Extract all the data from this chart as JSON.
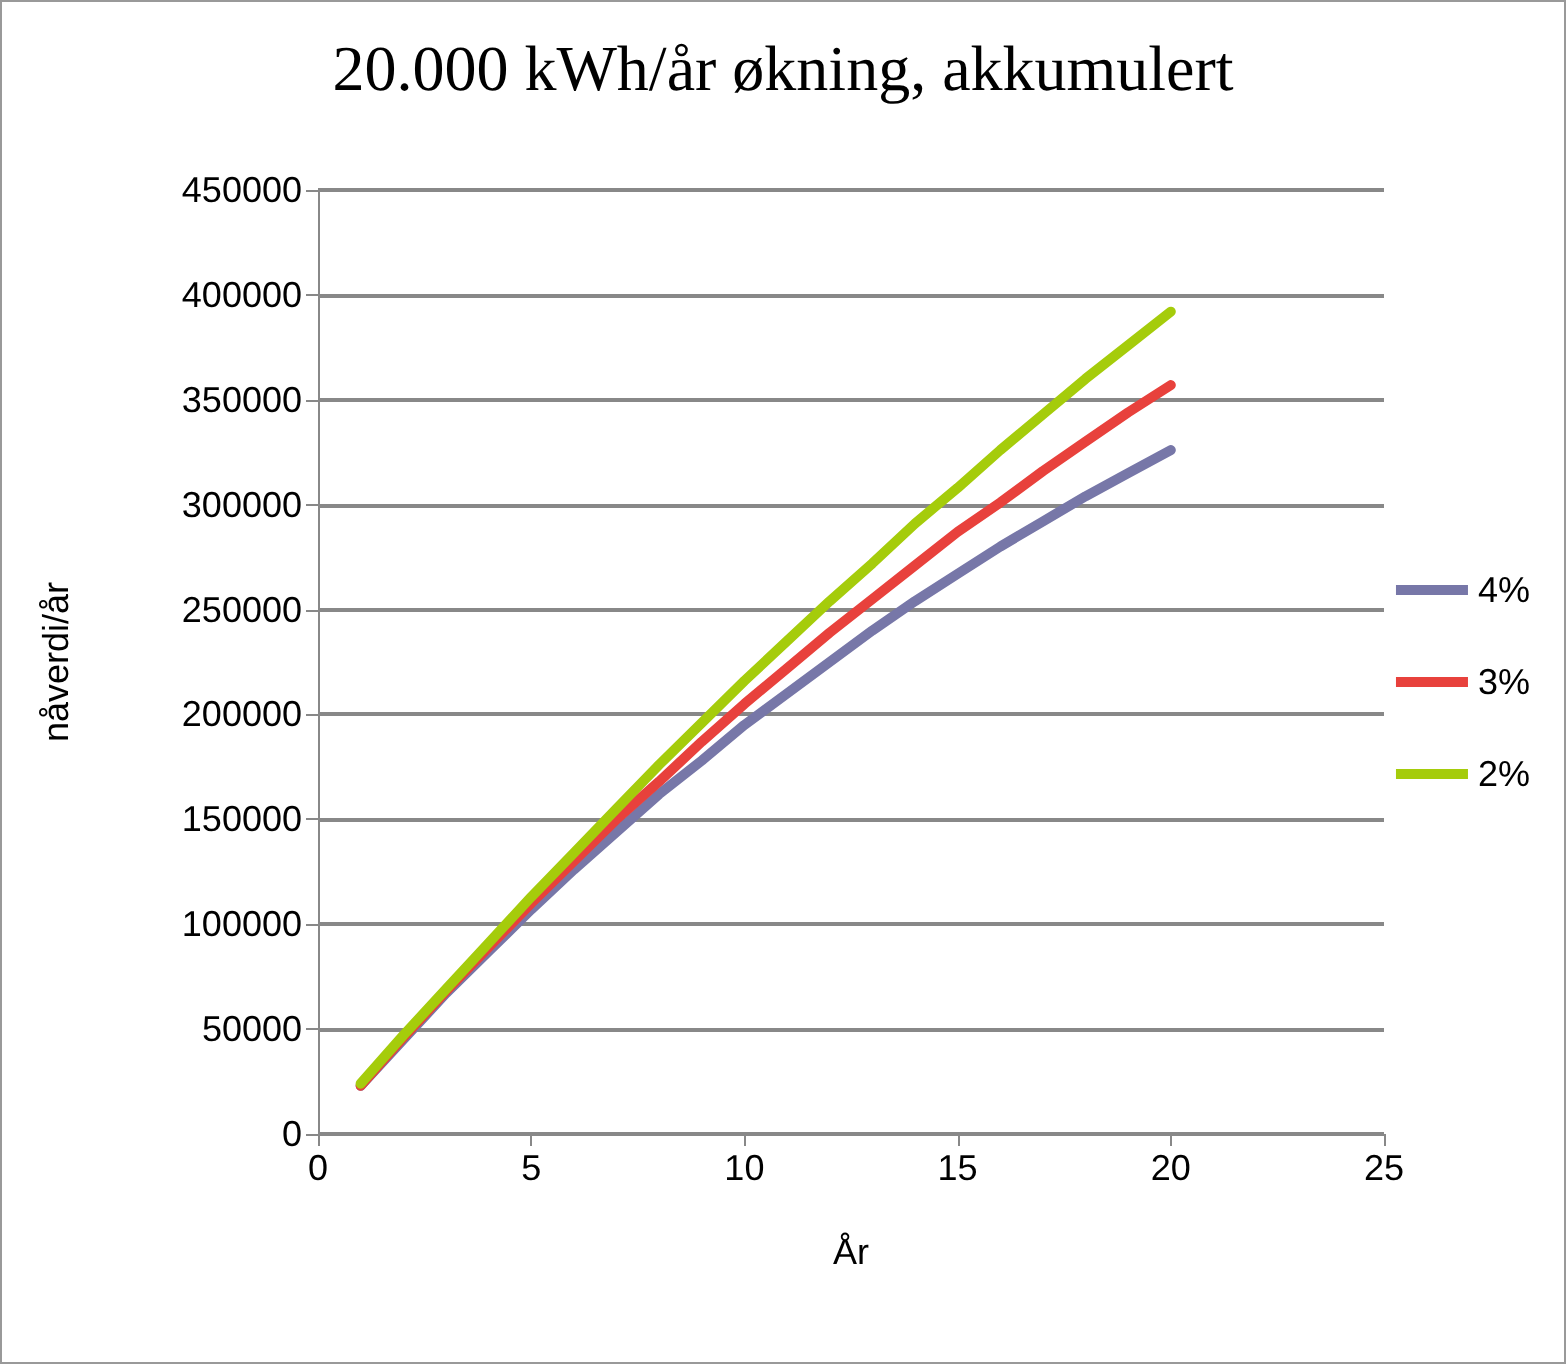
{
  "chart_data": {
    "type": "line",
    "title": "20.000 kWh/år økning, akkumulert",
    "xlabel": "År",
    "ylabel": "nåverdi/år",
    "x": [
      1,
      2,
      3,
      4,
      5,
      6,
      7,
      8,
      9,
      10,
      11,
      12,
      13,
      14,
      15,
      16,
      17,
      18,
      19,
      20
    ],
    "series": [
      {
        "name": "4%",
        "color": "#7777a8",
        "values": [
          23000,
          45000,
          67000,
          87000,
          107000,
          126000,
          144000,
          162000,
          178000,
          195000,
          210000,
          225000,
          240000,
          254000,
          267000,
          280000,
          292000,
          304000,
          315000,
          326000
        ]
      },
      {
        "name": "3%",
        "color": "#e8413c",
        "values": [
          23000,
          46000,
          68000,
          89000,
          110000,
          130000,
          150000,
          168000,
          187000,
          205000,
          222000,
          239000,
          255000,
          271000,
          287000,
          301000,
          316000,
          330000,
          344000,
          357000
        ]
      },
      {
        "name": "2%",
        "color": "#a5cc0b",
        "values": [
          24000,
          47000,
          69000,
          91000,
          113000,
          134000,
          155000,
          176000,
          196000,
          216000,
          235000,
          254000,
          272000,
          291000,
          308000,
          326000,
          343000,
          360000,
          376000,
          392000
        ]
      }
    ],
    "xlim": [
      0,
      25
    ],
    "xticks": [
      0,
      5,
      10,
      15,
      20,
      25
    ],
    "ylim": [
      0,
      450000
    ],
    "yticks": [
      0,
      50000,
      100000,
      150000,
      200000,
      250000,
      300000,
      350000,
      400000,
      450000
    ],
    "grid": "y",
    "legend": "right",
    "marker": "none",
    "line_style": "solid"
  }
}
